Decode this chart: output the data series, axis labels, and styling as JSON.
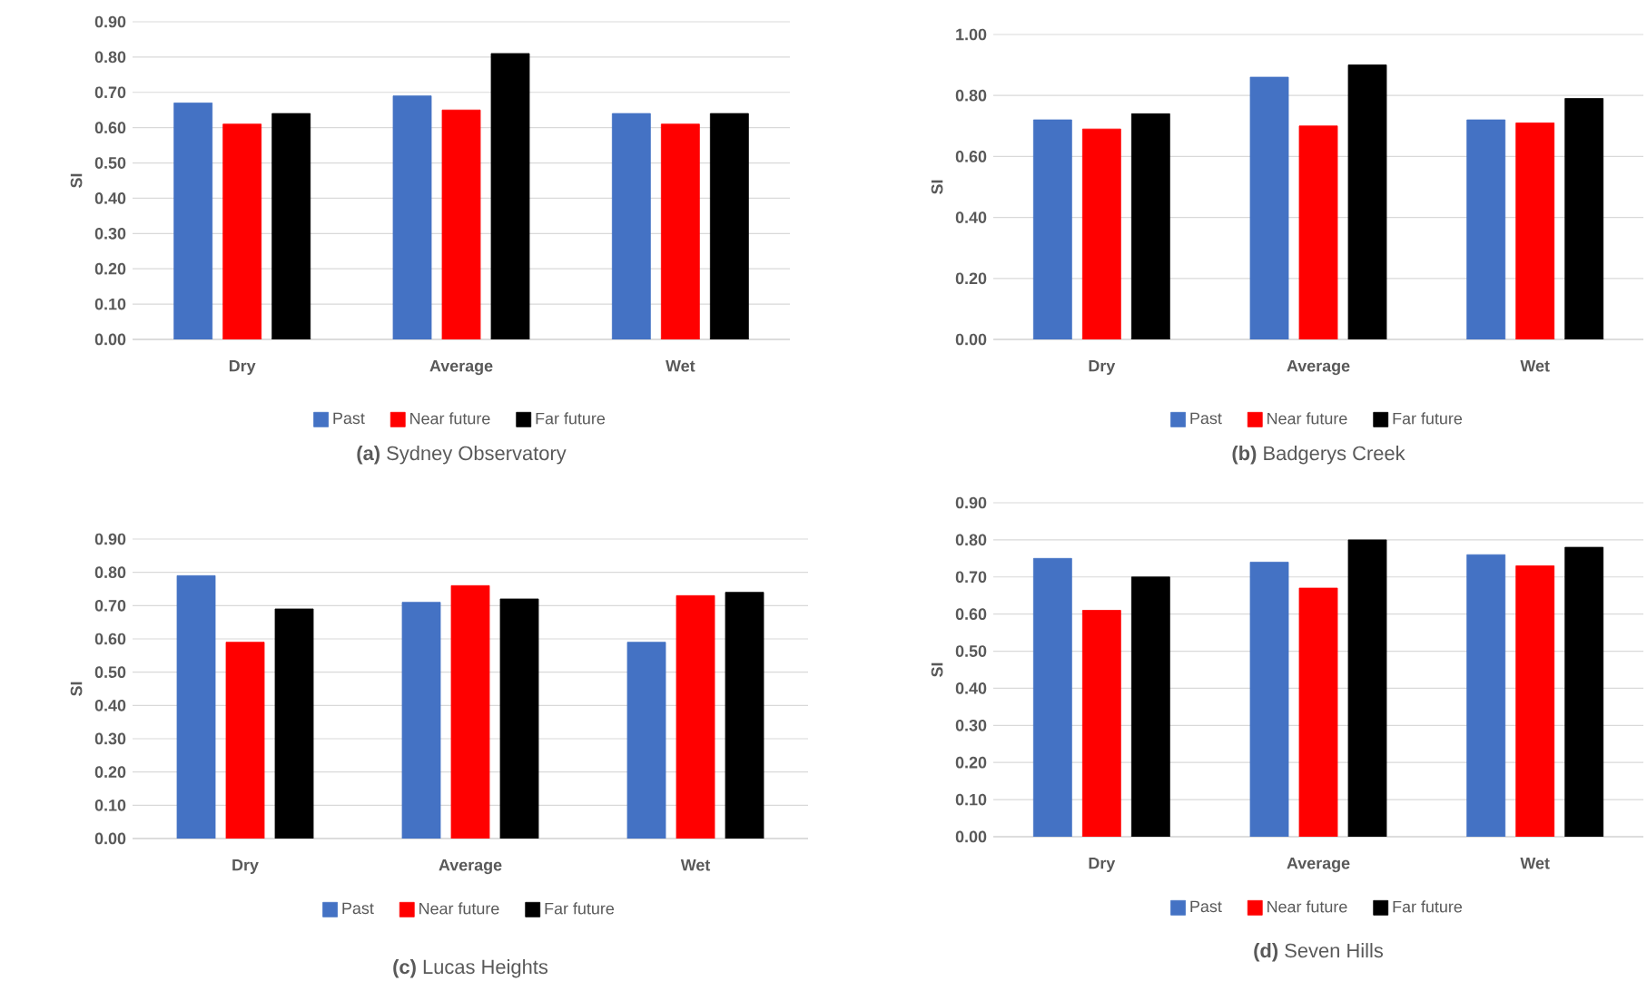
{
  "chart_data": [
    {
      "type": "bar",
      "title": "**(a)** Sydney Observatory",
      "ylabel": "SI",
      "categories": [
        "Dry",
        "Average",
        "Wet"
      ],
      "series": [
        {
          "name": "Past",
          "color": "#4472c4",
          "values": [
            0.67,
            0.69,
            0.64
          ]
        },
        {
          "name": "Near future",
          "color": "#ff0000",
          "values": [
            0.61,
            0.65,
            0.61
          ]
        },
        {
          "name": "Far future",
          "color": "#000000",
          "values": [
            0.64,
            0.81,
            0.64
          ]
        }
      ],
      "ylim": [
        0,
        0.9
      ],
      "yticks": [
        {
          "value": 0,
          "label": "0.00"
        },
        {
          "value": 0.1,
          "label": "0.10"
        },
        {
          "value": 0.2,
          "label": "0.20"
        },
        {
          "value": 0.3,
          "label": "0.30"
        },
        {
          "value": 0.4,
          "label": "0.40"
        },
        {
          "value": 0.5,
          "label": "0.50"
        },
        {
          "value": 0.6,
          "label": "0.60"
        },
        {
          "value": 0.7,
          "label": "0.70"
        },
        {
          "value": 0.8,
          "label": "0.80"
        },
        {
          "value": 0.9,
          "label": "0.90"
        }
      ],
      "grid": "y",
      "legend": "bottom"
    },
    {
      "type": "bar",
      "title": "**(b)** Badgerys Creek",
      "ylabel": "SI",
      "categories": [
        "Dry",
        "Average",
        "Wet"
      ],
      "series": [
        {
          "name": "Past",
          "color": "#4472c4",
          "values": [
            0.72,
            0.86,
            0.72
          ]
        },
        {
          "name": "Near future",
          "color": "#ff0000",
          "values": [
            0.69,
            0.7,
            0.71
          ]
        },
        {
          "name": "Far future",
          "color": "#000000",
          "values": [
            0.74,
            0.9,
            0.79
          ]
        }
      ],
      "ylim": [
        0,
        1.0
      ],
      "yticks": [
        {
          "value": 0,
          "label": "0.00"
        },
        {
          "value": 0.2,
          "label": "0.20"
        },
        {
          "value": 0.4,
          "label": "0.40"
        },
        {
          "value": 0.6,
          "label": "0.60"
        },
        {
          "value": 0.8,
          "label": "0.80"
        },
        {
          "value": 1.0,
          "label": "1.00"
        }
      ],
      "grid": "y",
      "legend": "bottom"
    },
    {
      "type": "bar",
      "title": "**(c)** Lucas Heights",
      "ylabel": "SI",
      "categories": [
        "Dry",
        "Average",
        "Wet"
      ],
      "series": [
        {
          "name": "Past",
          "color": "#4472c4",
          "values": [
            0.79,
            0.71,
            0.59
          ]
        },
        {
          "name": "Near future",
          "color": "#ff0000",
          "values": [
            0.59,
            0.76,
            0.73
          ]
        },
        {
          "name": "Far future",
          "color": "#000000",
          "values": [
            0.69,
            0.72,
            0.74
          ]
        }
      ],
      "ylim": [
        0,
        0.9
      ],
      "yticks": [
        {
          "value": 0,
          "label": "0.00"
        },
        {
          "value": 0.1,
          "label": "0.10"
        },
        {
          "value": 0.2,
          "label": "0.20"
        },
        {
          "value": 0.3,
          "label": "0.30"
        },
        {
          "value": 0.4,
          "label": "0.40"
        },
        {
          "value": 0.5,
          "label": "0.50"
        },
        {
          "value": 0.6,
          "label": "0.60"
        },
        {
          "value": 0.7,
          "label": "0.70"
        },
        {
          "value": 0.8,
          "label": "0.80"
        },
        {
          "value": 0.9,
          "label": "0.90"
        }
      ],
      "grid": "y",
      "legend": "bottom"
    },
    {
      "type": "bar",
      "title": "**(d)** Seven Hills",
      "ylabel": "SI",
      "categories": [
        "Dry",
        "Average",
        "Wet"
      ],
      "series": [
        {
          "name": "Past",
          "color": "#4472c4",
          "values": [
            0.75,
            0.74,
            0.76
          ]
        },
        {
          "name": "Near future",
          "color": "#ff0000",
          "values": [
            0.61,
            0.67,
            0.73
          ]
        },
        {
          "name": "Far future",
          "color": "#000000",
          "values": [
            0.7,
            0.8,
            0.78
          ]
        }
      ],
      "ylim": [
        0,
        0.9
      ],
      "yticks": [
        {
          "value": 0,
          "label": "0.00"
        },
        {
          "value": 0.1,
          "label": "0.10"
        },
        {
          "value": 0.2,
          "label": "0.20"
        },
        {
          "value": 0.3,
          "label": "0.30"
        },
        {
          "value": 0.4,
          "label": "0.40"
        },
        {
          "value": 0.5,
          "label": "0.50"
        },
        {
          "value": 0.6,
          "label": "0.60"
        },
        {
          "value": 0.7,
          "label": "0.70"
        },
        {
          "value": 0.8,
          "label": "0.80"
        },
        {
          "value": 0.9,
          "label": "0.90"
        }
      ],
      "grid": "y",
      "legend": "bottom"
    }
  ]
}
